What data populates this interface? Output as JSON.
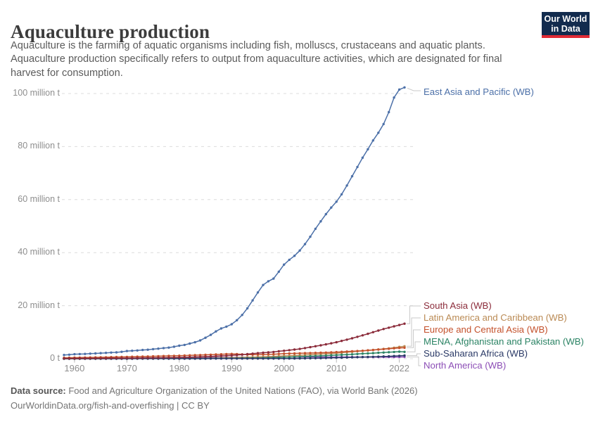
{
  "header": {
    "title": "Aquaculture production",
    "subtitle_lines": [
      "Aquaculture is the farming of aquatic organisms including fish, molluscs, crustaceans and aquatic plants.",
      "Aquaculture production specifically refers to output from aquaculture activities, which are designated for final",
      "harvest for consumption."
    ],
    "logo": {
      "line1": "Our World",
      "line2": "in Data",
      "bg_color": "#122B4E",
      "bar_color": "#E02B35"
    }
  },
  "chart_data": {
    "type": "line",
    "title": "Aquaculture production",
    "unit": "million tonnes",
    "legend_position": "right-end-labels",
    "grid": true,
    "x": {
      "start_year": 1958,
      "end_year": 2023,
      "tick_years": [
        1960,
        1970,
        1980,
        1990,
        2000,
        2010,
        2022
      ]
    },
    "y": {
      "min": 0,
      "max": 100,
      "ticks": [
        {
          "value": 0,
          "label": "0 t"
        },
        {
          "value": 20,
          "label": "20 million t"
        },
        {
          "value": 40,
          "label": "40 million t"
        },
        {
          "value": 60,
          "label": "60 million t"
        },
        {
          "value": 80,
          "label": "80 million t"
        },
        {
          "value": 100,
          "label": "100 million t"
        }
      ]
    },
    "series": [
      {
        "id": "east-asia-pacific",
        "name": "East Asia and Pacific (WB)",
        "color": "#4C70A8",
        "values": [
          1.4,
          1.5,
          1.7,
          1.75,
          1.8,
          1.9,
          2.0,
          2.1,
          2.2,
          2.3,
          2.4,
          2.6,
          2.9,
          3.0,
          3.1,
          3.3,
          3.4,
          3.6,
          3.8,
          4.0,
          4.2,
          4.5,
          4.9,
          5.2,
          5.7,
          6.2,
          6.9,
          7.9,
          9.0,
          10.3,
          11.4,
          12.1,
          13.0,
          14.5,
          16.5,
          19.0,
          22.0,
          25.0,
          27.8,
          29.2,
          30.2,
          32.8,
          35.5,
          37.3,
          38.8,
          40.8,
          43.2,
          46.0,
          49.0,
          51.8,
          54.5,
          57.0,
          59.2,
          62.0,
          65.3,
          68.8,
          72.3,
          75.8,
          79.0,
          82.3,
          85.2,
          88.5,
          93.0,
          98.5,
          101.5,
          102.3
        ]
      },
      {
        "id": "south-asia",
        "name": "South Asia (WB)",
        "color": "#8B2B3A",
        "values": [
          0.1,
          0.1,
          0.11,
          0.12,
          0.13,
          0.14,
          0.15,
          0.16,
          0.17,
          0.18,
          0.19,
          0.21,
          0.23,
          0.25,
          0.27,
          0.29,
          0.31,
          0.33,
          0.36,
          0.39,
          0.42,
          0.46,
          0.5,
          0.55,
          0.6,
          0.66,
          0.72,
          0.79,
          0.87,
          0.96,
          1.05,
          1.15,
          1.26,
          1.4,
          1.55,
          1.72,
          1.9,
          2.1,
          2.25,
          2.4,
          2.55,
          2.8,
          3.0,
          3.2,
          3.45,
          3.7,
          4.0,
          4.35,
          4.7,
          5.05,
          5.4,
          5.8,
          6.2,
          6.7,
          7.2,
          7.7,
          8.25,
          8.8,
          9.4,
          10.0,
          10.6,
          11.2,
          11.7,
          12.2,
          12.7,
          13.2
        ]
      },
      {
        "id": "latin-america-caribbean",
        "name": "Latin America and Caribbean (WB)",
        "color": "#BA8A54",
        "values": [
          0.01,
          0.01,
          0.01,
          0.01,
          0.02,
          0.02,
          0.02,
          0.02,
          0.02,
          0.03,
          0.03,
          0.03,
          0.03,
          0.04,
          0.04,
          0.05,
          0.05,
          0.06,
          0.06,
          0.07,
          0.07,
          0.08,
          0.09,
          0.1,
          0.11,
          0.13,
          0.15,
          0.17,
          0.2,
          0.24,
          0.28,
          0.32,
          0.37,
          0.42,
          0.47,
          0.52,
          0.58,
          0.65,
          0.72,
          0.8,
          0.87,
          0.96,
          1.05,
          1.12,
          1.2,
          1.3,
          1.42,
          1.55,
          1.65,
          1.75,
          1.85,
          1.95,
          2.05,
          2.25,
          2.45,
          2.6,
          2.8,
          2.95,
          3.1,
          3.3,
          3.5,
          3.7,
          3.9,
          4.15,
          4.45,
          4.7
        ]
      },
      {
        "id": "europe-central-asia",
        "name": "Europe and Central Asia (WB)",
        "color": "#C4512C",
        "values": [
          0.35,
          0.37,
          0.4,
          0.42,
          0.45,
          0.47,
          0.5,
          0.53,
          0.56,
          0.6,
          0.63,
          0.67,
          0.7,
          0.74,
          0.78,
          0.82,
          0.86,
          0.9,
          0.95,
          1.0,
          1.05,
          1.1,
          1.15,
          1.2,
          1.26,
          1.32,
          1.38,
          1.45,
          1.52,
          1.6,
          1.68,
          1.75,
          1.8,
          1.75,
          1.65,
          1.55,
          1.5,
          1.55,
          1.6,
          1.65,
          1.7,
          1.8,
          1.9,
          1.95,
          2.0,
          2.05,
          2.1,
          2.15,
          2.2,
          2.25,
          2.3,
          2.4,
          2.5,
          2.6,
          2.7,
          2.8,
          2.9,
          3.0,
          3.15,
          3.3,
          3.45,
          3.6,
          3.75,
          3.9,
          4.05,
          4.15
        ]
      },
      {
        "id": "mena-afghanistan-pakistan",
        "name": "MENA, Afghanistan and Pakistan (WB)",
        "color": "#2C8465",
        "values": [
          0.02,
          0.02,
          0.02,
          0.02,
          0.03,
          0.03,
          0.03,
          0.03,
          0.04,
          0.04,
          0.04,
          0.04,
          0.05,
          0.05,
          0.05,
          0.06,
          0.06,
          0.06,
          0.07,
          0.07,
          0.08,
          0.08,
          0.09,
          0.09,
          0.1,
          0.1,
          0.11,
          0.11,
          0.12,
          0.13,
          0.13,
          0.14,
          0.15,
          0.17,
          0.19,
          0.21,
          0.23,
          0.25,
          0.3,
          0.35,
          0.4,
          0.48,
          0.55,
          0.62,
          0.7,
          0.77,
          0.84,
          0.92,
          1.0,
          1.08,
          1.17,
          1.26,
          1.35,
          1.45,
          1.55,
          1.65,
          1.78,
          1.9,
          2.0,
          2.1,
          2.22,
          2.34,
          2.45,
          2.55,
          2.65,
          2.58
        ]
      },
      {
        "id": "sub-saharan-africa",
        "name": "Sub-Saharan Africa (WB)",
        "color": "#2B3A67",
        "values": [
          0.01,
          0.01,
          0.01,
          0.01,
          0.01,
          0.01,
          0.01,
          0.01,
          0.01,
          0.01,
          0.01,
          0.01,
          0.01,
          0.01,
          0.02,
          0.02,
          0.02,
          0.02,
          0.02,
          0.02,
          0.02,
          0.02,
          0.02,
          0.03,
          0.03,
          0.03,
          0.03,
          0.03,
          0.04,
          0.04,
          0.04,
          0.04,
          0.04,
          0.04,
          0.04,
          0.04,
          0.04,
          0.04,
          0.05,
          0.05,
          0.05,
          0.06,
          0.06,
          0.07,
          0.08,
          0.1,
          0.12,
          0.15,
          0.18,
          0.22,
          0.26,
          0.31,
          0.36,
          0.41,
          0.45,
          0.5,
          0.55,
          0.6,
          0.66,
          0.72,
          0.78,
          0.84,
          0.9,
          1.0,
          1.1,
          1.2
        ]
      },
      {
        "id": "north-america",
        "name": "North America (WB)",
        "color": "#8C4EB6",
        "values": [
          0.08,
          0.08,
          0.09,
          0.09,
          0.1,
          0.1,
          0.11,
          0.12,
          0.12,
          0.13,
          0.14,
          0.14,
          0.15,
          0.16,
          0.17,
          0.18,
          0.19,
          0.2,
          0.21,
          0.23,
          0.25,
          0.26,
          0.28,
          0.3,
          0.32,
          0.35,
          0.37,
          0.4,
          0.42,
          0.44,
          0.46,
          0.48,
          0.5,
          0.51,
          0.52,
          0.53,
          0.54,
          0.55,
          0.56,
          0.57,
          0.58,
          0.59,
          0.6,
          0.61,
          0.62,
          0.63,
          0.64,
          0.65,
          0.65,
          0.64,
          0.63,
          0.62,
          0.62,
          0.63,
          0.63,
          0.64,
          0.63,
          0.63,
          0.62,
          0.61,
          0.6,
          0.6,
          0.6,
          0.62,
          0.64,
          0.65
        ]
      }
    ],
    "style_colors": {
      "grid": "#dcdcdc",
      "axis_text": "#8e8e8e",
      "connector": "#c9c9c9",
      "tick_mark": "#b8b8b8"
    }
  },
  "footer": {
    "source_label": "Data source:",
    "source_text": " Food and Agriculture Organization of the United Nations (FAO), via World Bank (2026)",
    "credit_line": "OurWorldinData.org/fish-and-overfishing | CC BY"
  }
}
